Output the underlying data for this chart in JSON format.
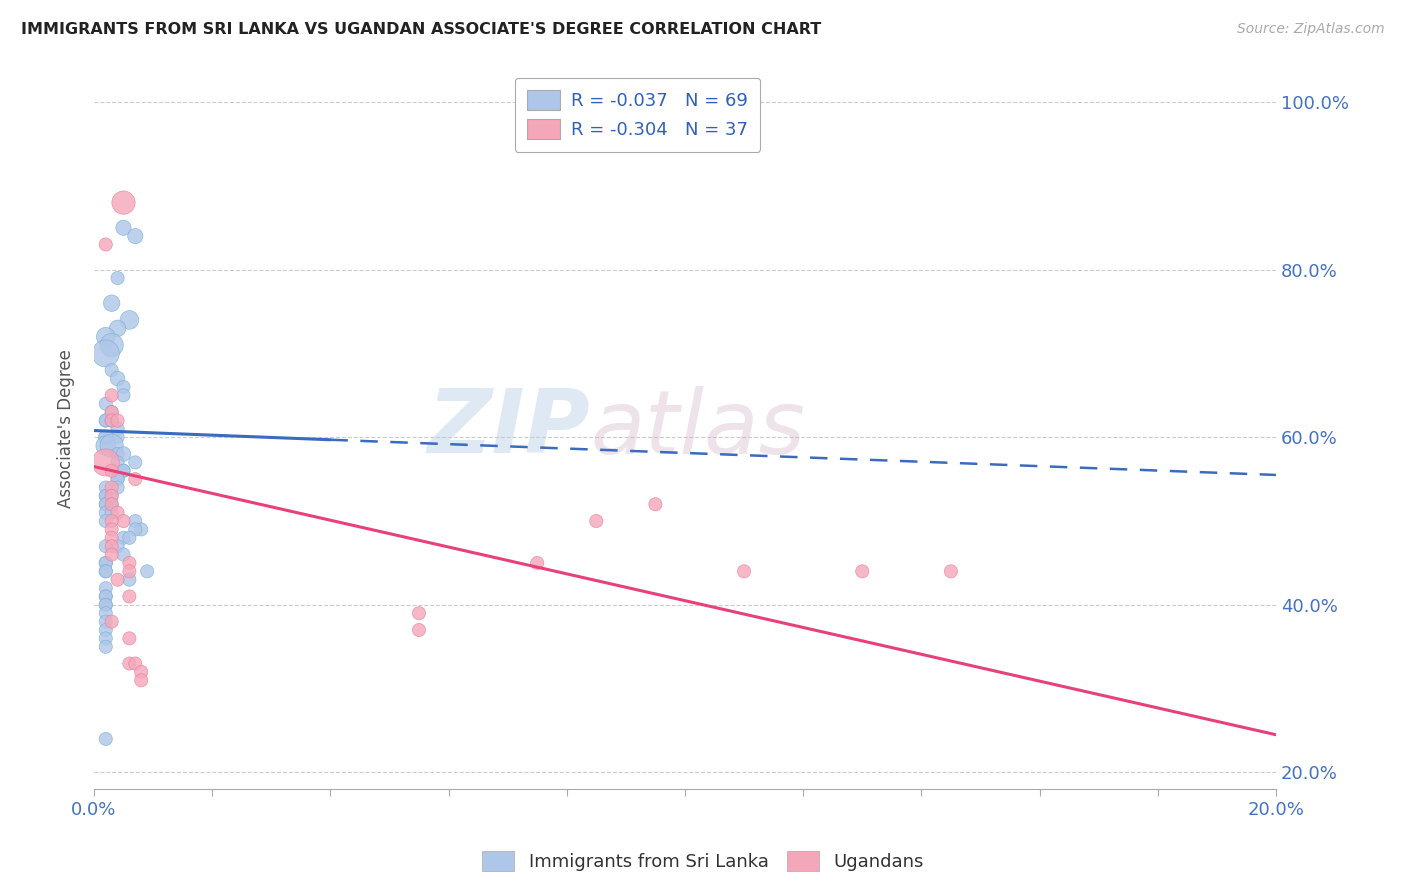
{
  "title": "IMMIGRANTS FROM SRI LANKA VS UGANDAN ASSOCIATE'S DEGREE CORRELATION CHART",
  "source": "Source: ZipAtlas.com",
  "ylabel": "Associate's Degree",
  "xlim": [
    0.0,
    0.2
  ],
  "ylim": [
    0.18,
    1.04
  ],
  "xtick_positions": [
    0.0,
    0.02,
    0.04,
    0.06,
    0.08,
    0.1,
    0.12,
    0.14,
    0.16,
    0.18,
    0.2
  ],
  "xticklabels": [
    "0.0%",
    "",
    "",
    "",
    "",
    "",
    "",
    "",
    "",
    "",
    "20.0%"
  ],
  "ytick_positions": [
    0.2,
    0.4,
    0.6,
    0.8,
    1.0
  ],
  "yticklabels": [
    "20.0%",
    "40.0%",
    "60.0%",
    "80.0%",
    "100.0%"
  ],
  "blue_color": "#aec6e8",
  "blue_edge_color": "#7aafd4",
  "pink_color": "#f4a7b9",
  "pink_edge_color": "#e87fa0",
  "blue_line_color": "#3a6bbf",
  "pink_line_color": "#e8407a",
  "legend_text1": "R = -0.037   N = 69",
  "legend_text2": "R = -0.304   N = 37",
  "legend_label1": "Immigrants from Sri Lanka",
  "legend_label2": "Ugandans",
  "watermark_zip": "ZIP",
  "watermark_atlas": "atlas",
  "title_color": "#222222",
  "tick_color": "#4472c4",
  "grid_color": "#cccccc",
  "blue_x": [
    0.005,
    0.007,
    0.004,
    0.003,
    0.006,
    0.004,
    0.002,
    0.003,
    0.002,
    0.003,
    0.004,
    0.005,
    0.005,
    0.002,
    0.003,
    0.002,
    0.003,
    0.002,
    0.003,
    0.004,
    0.004,
    0.002,
    0.002,
    0.002,
    0.003,
    0.004,
    0.005,
    0.007,
    0.004,
    0.005,
    0.005,
    0.004,
    0.004,
    0.004,
    0.002,
    0.002,
    0.003,
    0.002,
    0.003,
    0.002,
    0.002,
    0.002,
    0.003,
    0.002,
    0.007,
    0.008,
    0.007,
    0.005,
    0.006,
    0.004,
    0.002,
    0.005,
    0.002,
    0.002,
    0.002,
    0.002,
    0.009,
    0.006,
    0.002,
    0.002,
    0.002,
    0.002,
    0.002,
    0.002,
    0.002,
    0.002,
    0.002,
    0.002,
    0.002
  ],
  "blue_y": [
    0.85,
    0.84,
    0.79,
    0.76,
    0.74,
    0.73,
    0.72,
    0.71,
    0.7,
    0.68,
    0.67,
    0.66,
    0.65,
    0.64,
    0.63,
    0.62,
    0.62,
    0.62,
    0.62,
    0.61,
    0.6,
    0.6,
    0.6,
    0.59,
    0.59,
    0.58,
    0.58,
    0.57,
    0.57,
    0.56,
    0.56,
    0.55,
    0.55,
    0.54,
    0.54,
    0.53,
    0.53,
    0.53,
    0.52,
    0.52,
    0.52,
    0.51,
    0.51,
    0.5,
    0.5,
    0.49,
    0.49,
    0.48,
    0.48,
    0.47,
    0.47,
    0.46,
    0.45,
    0.45,
    0.44,
    0.44,
    0.44,
    0.43,
    0.42,
    0.41,
    0.41,
    0.4,
    0.4,
    0.39,
    0.38,
    0.37,
    0.36,
    0.35,
    0.24
  ],
  "blue_sizes": [
    120,
    120,
    90,
    140,
    180,
    140,
    180,
    280,
    380,
    90,
    110,
    90,
    90,
    90,
    90,
    90,
    90,
    90,
    90,
    90,
    90,
    90,
    110,
    200,
    280,
    90,
    110,
    90,
    90,
    90,
    90,
    90,
    90,
    90,
    90,
    90,
    90,
    90,
    90,
    90,
    90,
    90,
    90,
    90,
    90,
    90,
    90,
    90,
    90,
    90,
    90,
    90,
    90,
    90,
    90,
    90,
    90,
    90,
    90,
    90,
    90,
    90,
    90,
    90,
    90,
    90,
    90,
    90,
    90
  ],
  "pink_x": [
    0.005,
    0.002,
    0.003,
    0.003,
    0.003,
    0.004,
    0.002,
    0.003,
    0.007,
    0.003,
    0.003,
    0.003,
    0.004,
    0.005,
    0.003,
    0.003,
    0.003,
    0.003,
    0.003,
    0.006,
    0.006,
    0.004,
    0.006,
    0.095,
    0.075,
    0.085,
    0.003,
    0.006,
    0.006,
    0.007,
    0.008,
    0.008,
    0.145,
    0.055,
    0.13,
    0.11,
    0.055
  ],
  "pink_y": [
    0.88,
    0.83,
    0.65,
    0.63,
    0.62,
    0.62,
    0.57,
    0.56,
    0.55,
    0.54,
    0.53,
    0.52,
    0.51,
    0.5,
    0.5,
    0.49,
    0.48,
    0.47,
    0.46,
    0.45,
    0.44,
    0.43,
    0.41,
    0.52,
    0.45,
    0.5,
    0.38,
    0.36,
    0.33,
    0.33,
    0.32,
    0.31,
    0.44,
    0.39,
    0.44,
    0.44,
    0.37
  ],
  "pink_sizes": [
    280,
    90,
    90,
    90,
    90,
    90,
    380,
    90,
    90,
    90,
    90,
    90,
    90,
    90,
    90,
    90,
    90,
    90,
    90,
    90,
    90,
    90,
    90,
    90,
    90,
    90,
    90,
    90,
    90,
    90,
    90,
    90,
    90,
    90,
    90,
    90,
    90
  ],
  "blue_trend_x0": 0.0,
  "blue_trend_x1": 0.04,
  "blue_trend_x2": 0.2,
  "blue_trend_y0": 0.608,
  "blue_trend_y1": 0.597,
  "blue_trend_y2": 0.555,
  "pink_trend_x0": 0.0,
  "pink_trend_x1": 0.2,
  "pink_trend_y0": 0.565,
  "pink_trend_y1": 0.245
}
